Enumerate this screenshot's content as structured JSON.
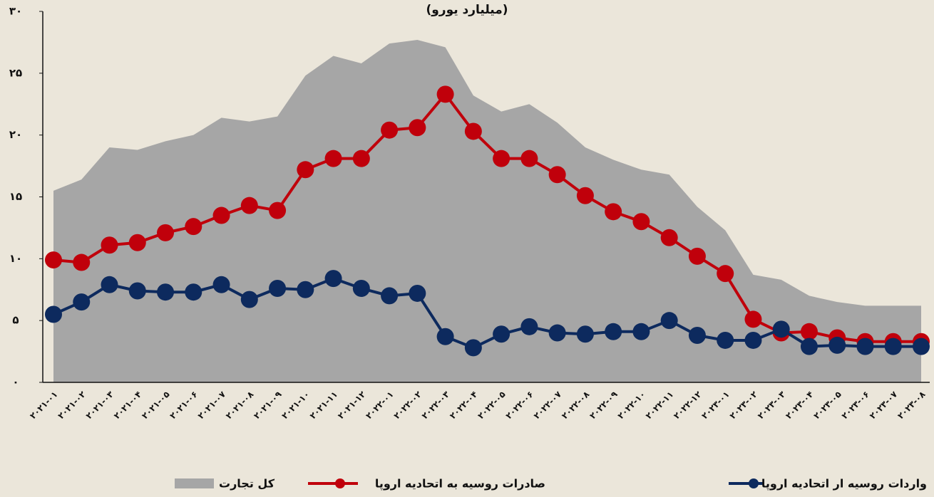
{
  "chart_data": {
    "type": "line",
    "title": "(میلیارد یورو)",
    "categories": [
      "۲۰۲۱-۰۱",
      "۲۰۲۱-۰۲",
      "۲۰۲۱-۰۳",
      "۲۰۲۱-۰۴",
      "۲۰۲۱-۰۵",
      "۲۰۲۱-۰۶",
      "۲۰۲۱-۰۷",
      "۲۰۲۱-۰۸",
      "۲۰۲۱-۰۹",
      "۲۰۲۱-۱۰",
      "۲۰۲۱-۱۱",
      "۲۰۲۱-۱۲",
      "۲۰۲۲-۰۱",
      "۲۰۲۲-۰۲",
      "۲۰۲۲-۰۳",
      "۲۰۲۲-۰۴",
      "۲۰۲۲-۰۵",
      "۲۰۲۲-۰۶",
      "۲۰۲۲-۰۷",
      "۲۰۲۲-۰۸",
      "۲۰۲۲-۰۹",
      "۲۰۲۲-۱۰",
      "۲۰۲۲-۱۱",
      "۲۰۲۲-۱۲",
      "۲۰۲۳-۰۱",
      "۲۰۲۳-۰۲",
      "۲۰۲۳-۰۳",
      "۲۰۲۳-۰۴",
      "۲۰۲۳-۰۵",
      "۲۰۲۳-۰۶",
      "۲۰۲۳-۰۷",
      "۲۰۲۳-۰۸"
    ],
    "series": [
      {
        "name": "کل تجارت",
        "kind": "area",
        "color": "#a6a6a6",
        "values": [
          15.5,
          16.4,
          19.0,
          18.8,
          19.5,
          20.0,
          21.4,
          21.1,
          21.5,
          24.8,
          26.4,
          25.8,
          27.4,
          27.7,
          27.1,
          23.2,
          21.9,
          22.5,
          21.0,
          19.0,
          18.0,
          17.2,
          16.8,
          14.2,
          12.3,
          8.7,
          8.3,
          7.0,
          6.5,
          6.2,
          6.2,
          6.2
        ]
      },
      {
        "name": "صادرات روسیه به اتحادیه اروپا",
        "kind": "line",
        "color": "#c0000b",
        "values": [
          9.9,
          9.7,
          11.1,
          11.3,
          12.1,
          12.6,
          13.5,
          14.3,
          13.9,
          17.2,
          18.1,
          18.1,
          20.4,
          20.6,
          23.3,
          20.3,
          18.1,
          18.1,
          16.8,
          15.1,
          13.8,
          13.0,
          11.7,
          10.2,
          8.8,
          5.1,
          4.0,
          4.1,
          3.6,
          3.3,
          3.3,
          3.3
        ]
      },
      {
        "name": "واردات روسیه ار اتحادیه اروپا",
        "kind": "line",
        "color": "#0d2a5e",
        "values": [
          5.5,
          6.5,
          7.9,
          7.4,
          7.3,
          7.3,
          7.9,
          6.7,
          7.6,
          7.5,
          8.4,
          7.6,
          7.0,
          7.2,
          3.7,
          2.8,
          3.9,
          4.5,
          4.0,
          3.9,
          4.1,
          4.1,
          5.0,
          3.8,
          3.4,
          3.4,
          4.3,
          2.9,
          3.0,
          2.9,
          2.9,
          2.9
        ]
      }
    ],
    "ylim": [
      0,
      30
    ],
    "yticks": [
      {
        "value": 0,
        "label": "۰"
      },
      {
        "value": 5,
        "label": "۵"
      },
      {
        "value": 10,
        "label": "۱۰"
      },
      {
        "value": 15,
        "label": "۱۵"
      },
      {
        "value": 20,
        "label": "۲۰"
      },
      {
        "value": 25,
        "label": "۲۵"
      },
      {
        "value": 30,
        "label": "۳۰"
      }
    ]
  }
}
